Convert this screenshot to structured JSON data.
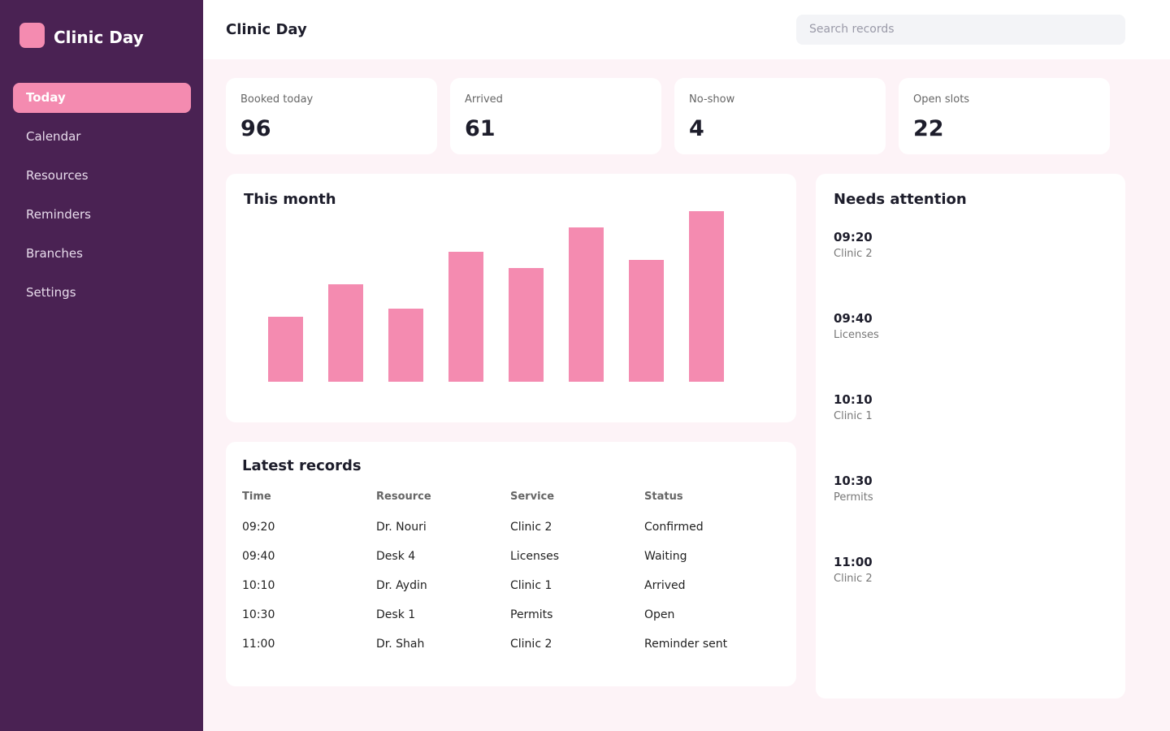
{
  "sidebar": {
    "brand": "Clinic Day",
    "nav": [
      "Today",
      "Calendar",
      "Resources",
      "Reminders",
      "Branches",
      "Settings"
    ],
    "active": 0
  },
  "header": {
    "title": "Clinic Day",
    "search_placeholder": "Search records"
  },
  "stats": [
    {
      "label": "Booked today",
      "value": 96
    },
    {
      "label": "Arrived",
      "value": 61
    },
    {
      "label": "No-show",
      "value": 4
    },
    {
      "label": "Open slots",
      "value": 22
    }
  ],
  "chart_data": {
    "type": "bar",
    "title": "This month",
    "values": [
      80,
      120,
      90,
      160,
      140,
      190,
      150,
      210
    ],
    "color": "#f48bb0",
    "ylim": [
      0,
      210
    ]
  },
  "records": {
    "title": "Latest records",
    "columns": [
      "Time",
      "Resource",
      "Service",
      "Status"
    ],
    "rows": [
      [
        "09:20",
        "Dr. Nouri",
        "Clinic 2",
        "Confirmed"
      ],
      [
        "09:40",
        "Desk 4",
        "Licenses",
        "Waiting"
      ],
      [
        "10:10",
        "Dr. Aydin",
        "Clinic 1",
        "Arrived"
      ],
      [
        "10:30",
        "Desk 1",
        "Permits",
        "Open"
      ],
      [
        "11:00",
        "Dr. Shah",
        "Clinic 2",
        "Reminder sent"
      ]
    ]
  },
  "attention": {
    "title": "Needs attention",
    "items": [
      {
        "time": "09:20",
        "detail": "Clinic 2"
      },
      {
        "time": "09:40",
        "detail": "Licenses"
      },
      {
        "time": "10:10",
        "detail": "Clinic 1"
      },
      {
        "time": "10:30",
        "detail": "Permits"
      },
      {
        "time": "11:00",
        "detail": "Clinic 2"
      }
    ]
  }
}
